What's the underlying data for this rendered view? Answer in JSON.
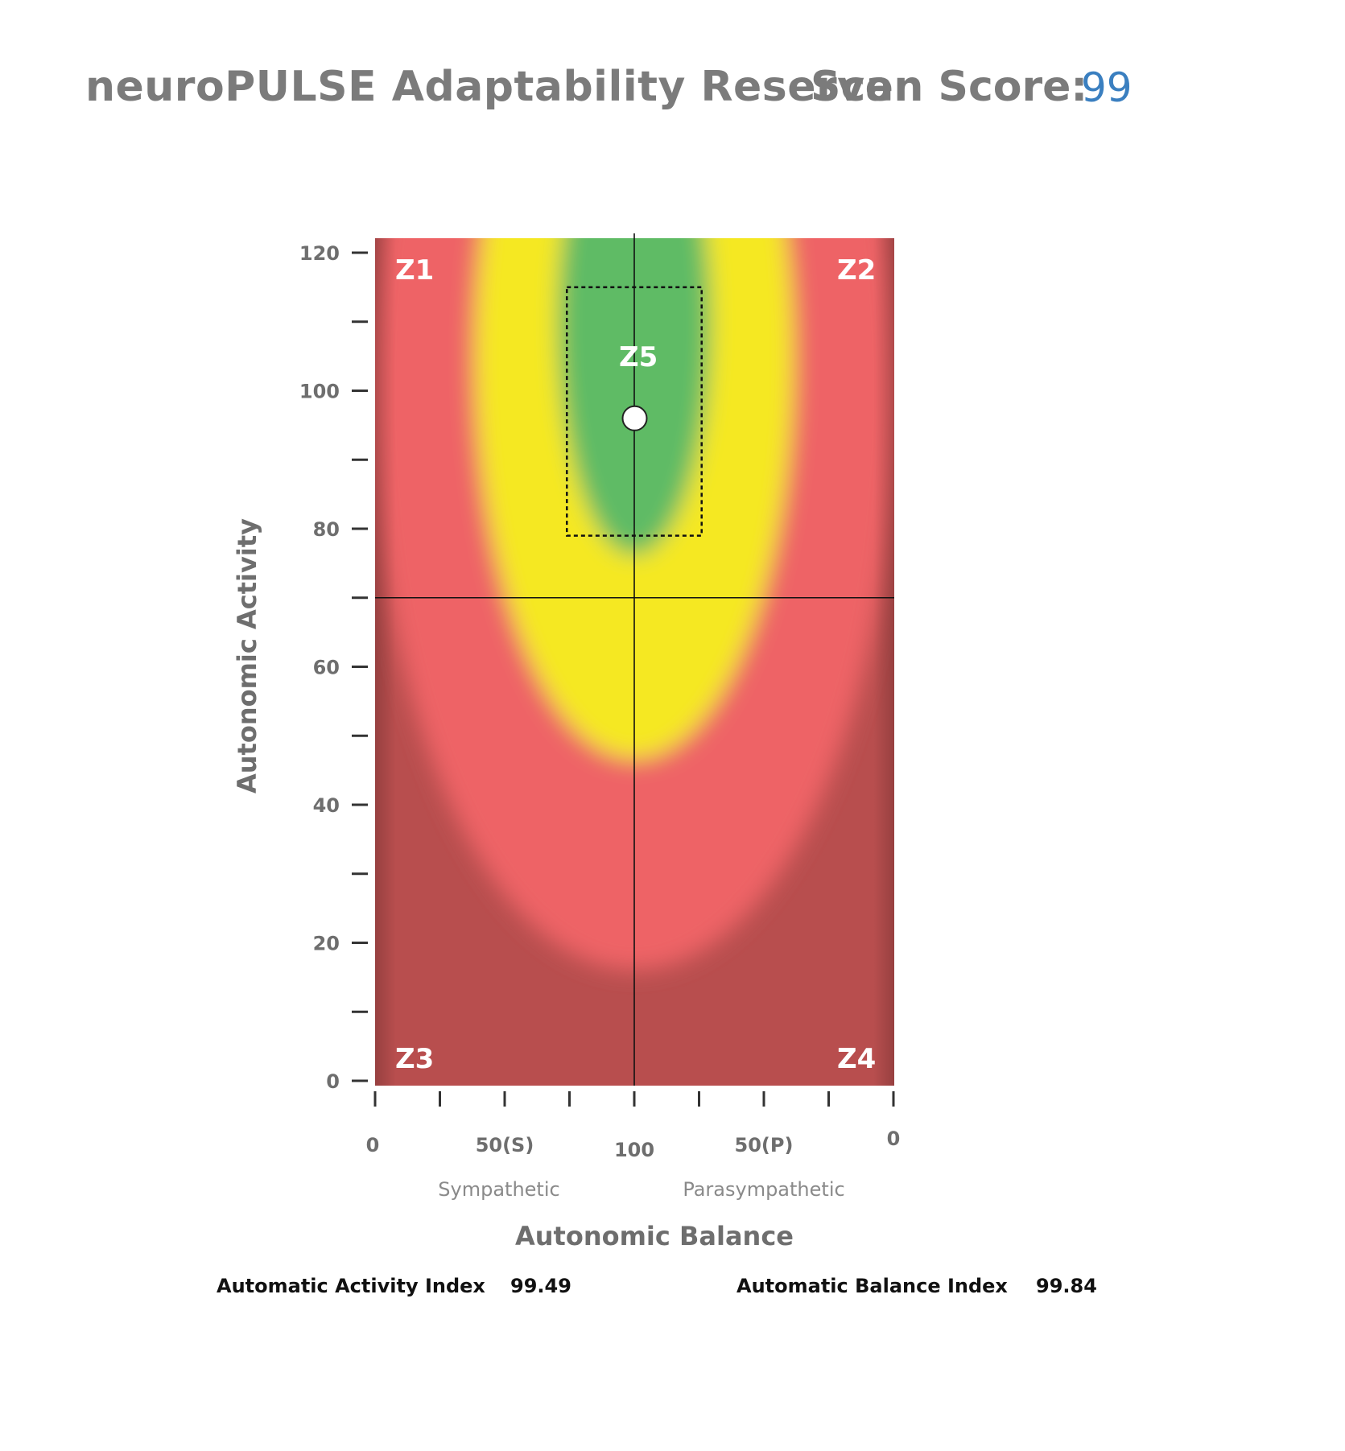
{
  "header": {
    "title": "neuroPULSE Adaptability Reserve",
    "score_label": "Scan Score:",
    "score_value": "99"
  },
  "chart_data": {
    "type": "heatmap",
    "xlabel": "Autonomic Balance",
    "ylabel": "Autonomic Activity",
    "x_tick_labels": [
      "0",
      "50(S)",
      "100",
      "50(P)",
      "0"
    ],
    "x_side_labels": [
      "Sympathetic",
      "Parasympathetic"
    ],
    "y_tick_labels": [
      "0",
      "20",
      "40",
      "60",
      "80",
      "100",
      "120"
    ],
    "ylim": [
      0,
      123
    ],
    "xlim": [
      -100,
      100
    ],
    "zones": [
      "Z1",
      "Z2",
      "Z3",
      "Z4",
      "Z5"
    ],
    "crosshair": {
      "balance": 0,
      "activity": 70
    },
    "target_box": {
      "x": [
        -26,
        26
      ],
      "y": [
        79,
        115
      ]
    },
    "point": {
      "balance": 0.16,
      "activity": 96
    },
    "colors": {
      "outer": "#b84e4e",
      "red": "#ee6466",
      "yellow": "#f5e820",
      "green": "#5fbb65"
    }
  },
  "indices": {
    "activity_label": "Automatic Activity Index",
    "activity_value": "99.49",
    "balance_label": "Automatic Balance Index",
    "balance_value": "99.84"
  }
}
